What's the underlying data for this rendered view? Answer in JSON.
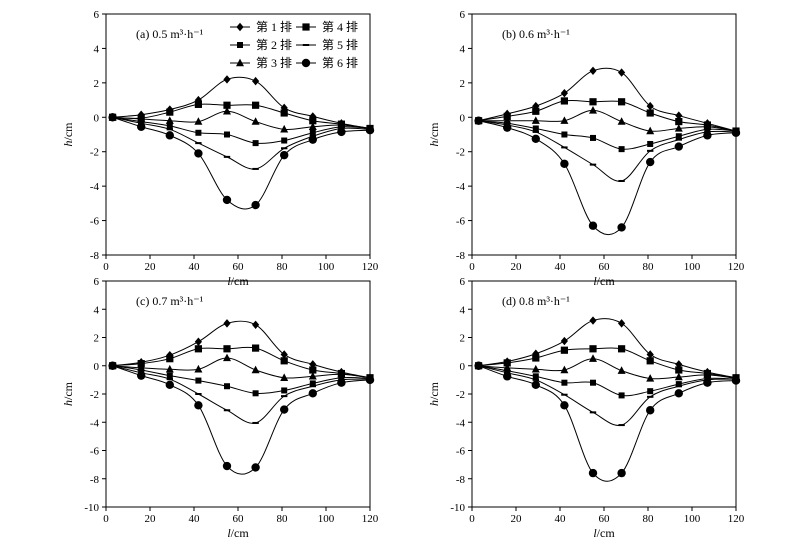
{
  "figure": {
    "legend": [
      {
        "name": "第 1 排",
        "marker": "diamond"
      },
      {
        "name": "第 2 排",
        "marker": "square-small"
      },
      {
        "name": "第 3 排",
        "marker": "triangle"
      },
      {
        "name": "第 4 排",
        "marker": "square"
      },
      {
        "name": "第 5 排",
        "marker": "dash"
      },
      {
        "name": "第 6 排",
        "marker": "circle"
      }
    ]
  },
  "chart_data": [
    {
      "type": "line",
      "panel_label": "(a)  0.5 m³·h⁻¹",
      "xlabel": "l",
      "xunit": "/cm",
      "ylabel": "h",
      "yunit": "/cm",
      "xlim": [
        0,
        120
      ],
      "xticks": [
        0,
        20,
        40,
        60,
        80,
        100,
        120
      ],
      "ylim": [
        -8,
        6
      ],
      "yticks": [
        -8,
        -6,
        -4,
        -2,
        0,
        2,
        4,
        6
      ],
      "grid": false,
      "legend_position": "top-right",
      "x": [
        3,
        16,
        29,
        42,
        55,
        68,
        81,
        94,
        107,
        120
      ],
      "series": [
        {
          "name": "第 1 排",
          "marker": "diamond",
          "values": [
            0,
            0.15,
            0.45,
            1.0,
            2.2,
            2.1,
            0.55,
            0.05,
            -0.35,
            -0.65
          ]
        },
        {
          "name": "第 2 排",
          "marker": "square-small",
          "values": [
            0,
            -0.25,
            -0.5,
            -0.9,
            -1.0,
            -1.5,
            -1.35,
            -0.9,
            -0.55,
            -0.65
          ]
        },
        {
          "name": "第 3 排",
          "marker": "triangle",
          "values": [
            0,
            -0.1,
            -0.2,
            -0.25,
            0.35,
            -0.25,
            -0.7,
            -0.55,
            -0.45,
            -0.65
          ]
        },
        {
          "name": "第 4 排",
          "marker": "square",
          "values": [
            0,
            -0.05,
            0.3,
            0.75,
            0.7,
            0.7,
            0.25,
            -0.2,
            -0.4,
            -0.65
          ]
        },
        {
          "name": "第 5 排",
          "marker": "dash",
          "values": [
            0,
            -0.35,
            -0.7,
            -1.5,
            -2.3,
            -3.0,
            -1.8,
            -1.1,
            -0.65,
            -0.7
          ]
        },
        {
          "name": "第 6 排",
          "marker": "circle",
          "values": [
            0,
            -0.55,
            -1.05,
            -2.1,
            -4.8,
            -5.1,
            -2.2,
            -1.3,
            -0.85,
            -0.75
          ]
        }
      ]
    },
    {
      "type": "line",
      "panel_label": "(b)  0.6 m³·h⁻¹",
      "xlabel": "l",
      "xunit": "/cm",
      "ylabel": "h",
      "yunit": "/cm",
      "xlim": [
        0,
        120
      ],
      "xticks": [
        0,
        20,
        40,
        60,
        80,
        100,
        120
      ],
      "ylim": [
        -8,
        6
      ],
      "yticks": [
        -8,
        -6,
        -4,
        -2,
        0,
        2,
        4,
        6
      ],
      "grid": false,
      "x": [
        3,
        16,
        29,
        42,
        55,
        68,
        81,
        94,
        107,
        120
      ],
      "series": [
        {
          "name": "第 1 排",
          "marker": "diamond",
          "values": [
            -0.2,
            0.2,
            0.65,
            1.4,
            2.7,
            2.6,
            0.65,
            0.1,
            -0.35,
            -0.8
          ]
        },
        {
          "name": "第 2 排",
          "marker": "square-small",
          "values": [
            -0.2,
            -0.35,
            -0.65,
            -1.0,
            -1.2,
            -1.85,
            -1.55,
            -1.1,
            -0.7,
            -0.8
          ]
        },
        {
          "name": "第 3 排",
          "marker": "triangle",
          "values": [
            -0.2,
            -0.2,
            -0.2,
            -0.2,
            0.4,
            -0.25,
            -0.8,
            -0.65,
            -0.55,
            -0.8
          ]
        },
        {
          "name": "第 4 排",
          "marker": "square",
          "values": [
            -0.2,
            0.05,
            0.35,
            0.95,
            0.9,
            0.9,
            0.25,
            -0.25,
            -0.45,
            -0.8
          ]
        },
        {
          "name": "第 5 排",
          "marker": "dash",
          "values": [
            -0.2,
            -0.45,
            -0.85,
            -1.75,
            -2.75,
            -3.7,
            -1.95,
            -1.3,
            -0.85,
            -0.85
          ]
        },
        {
          "name": "第 6 排",
          "marker": "circle",
          "values": [
            -0.2,
            -0.6,
            -1.25,
            -2.7,
            -6.3,
            -6.4,
            -2.6,
            -1.7,
            -1.05,
            -0.9
          ]
        }
      ]
    },
    {
      "type": "line",
      "panel_label": "(c)  0.7 m³·h⁻¹",
      "xlabel": "l",
      "xunit": "/cm",
      "ylabel": "h",
      "yunit": "/cm",
      "xlim": [
        0,
        120
      ],
      "xticks": [
        0,
        20,
        40,
        60,
        80,
        100,
        120
      ],
      "ylim": [
        -10,
        6
      ],
      "yticks": [
        -10,
        -8,
        -6,
        -4,
        -2,
        0,
        2,
        4,
        6
      ],
      "grid": false,
      "x": [
        3,
        16,
        29,
        42,
        55,
        68,
        81,
        94,
        107,
        120
      ],
      "series": [
        {
          "name": "第 1 排",
          "marker": "diamond",
          "values": [
            0,
            0.25,
            0.75,
            1.7,
            3.0,
            2.9,
            0.8,
            0.1,
            -0.45,
            -0.85
          ]
        },
        {
          "name": "第 2 排",
          "marker": "square-small",
          "values": [
            0,
            -0.3,
            -0.7,
            -1.05,
            -1.45,
            -1.95,
            -1.75,
            -1.25,
            -0.85,
            -0.9
          ]
        },
        {
          "name": "第 3 排",
          "marker": "triangle",
          "values": [
            0,
            -0.15,
            -0.25,
            -0.25,
            0.55,
            -0.3,
            -0.85,
            -0.75,
            -0.6,
            -0.85
          ]
        },
        {
          "name": "第 4 排",
          "marker": "square",
          "values": [
            0,
            0.15,
            0.5,
            1.2,
            1.2,
            1.25,
            0.35,
            -0.3,
            -0.55,
            -0.85
          ]
        },
        {
          "name": "第 5 排",
          "marker": "dash",
          "values": [
            0,
            -0.5,
            -0.95,
            -2.0,
            -3.15,
            -4.05,
            -2.15,
            -1.45,
            -1.0,
            -0.95
          ]
        },
        {
          "name": "第 6 排",
          "marker": "circle",
          "values": [
            0,
            -0.7,
            -1.35,
            -2.8,
            -7.1,
            -7.2,
            -3.1,
            -1.95,
            -1.2,
            -1.0
          ]
        }
      ]
    },
    {
      "type": "line",
      "panel_label": "(d)  0.8 m³·h⁻¹",
      "xlabel": "l",
      "xunit": "/cm",
      "ylabel": "h",
      "yunit": "/cm",
      "xlim": [
        0,
        120
      ],
      "xticks": [
        0,
        20,
        40,
        60,
        80,
        100,
        120
      ],
      "ylim": [
        -10,
        6
      ],
      "yticks": [
        -10,
        -8,
        -6,
        -4,
        -2,
        0,
        2,
        4,
        6
      ],
      "grid": false,
      "x": [
        3,
        16,
        29,
        42,
        55,
        68,
        81,
        94,
        107,
        120
      ],
      "series": [
        {
          "name": "第 1 排",
          "marker": "diamond",
          "values": [
            0,
            0.3,
            0.85,
            1.75,
            3.2,
            3.0,
            0.8,
            0.1,
            -0.45,
            -0.85
          ]
        },
        {
          "name": "第 2 排",
          "marker": "square-small",
          "values": [
            0,
            -0.35,
            -0.75,
            -1.2,
            -1.2,
            -2.1,
            -1.8,
            -1.3,
            -0.9,
            -0.95
          ]
        },
        {
          "name": "第 3 排",
          "marker": "triangle",
          "values": [
            0,
            -0.15,
            -0.25,
            -0.3,
            0.5,
            -0.35,
            -0.9,
            -0.8,
            -0.65,
            -0.9
          ]
        },
        {
          "name": "第 4 排",
          "marker": "square",
          "values": [
            0,
            0.2,
            0.55,
            1.1,
            1.2,
            1.2,
            0.35,
            -0.3,
            -0.55,
            -0.85
          ]
        },
        {
          "name": "第 5 排",
          "marker": "dash",
          "values": [
            0,
            -0.5,
            -1.0,
            -2.05,
            -3.3,
            -4.2,
            -2.2,
            -1.45,
            -1.0,
            -0.95
          ]
        },
        {
          "name": "第 6 排",
          "marker": "circle",
          "values": [
            0,
            -0.75,
            -1.35,
            -2.8,
            -7.6,
            -7.6,
            -3.15,
            -1.95,
            -1.2,
            -1.05
          ]
        }
      ]
    }
  ]
}
